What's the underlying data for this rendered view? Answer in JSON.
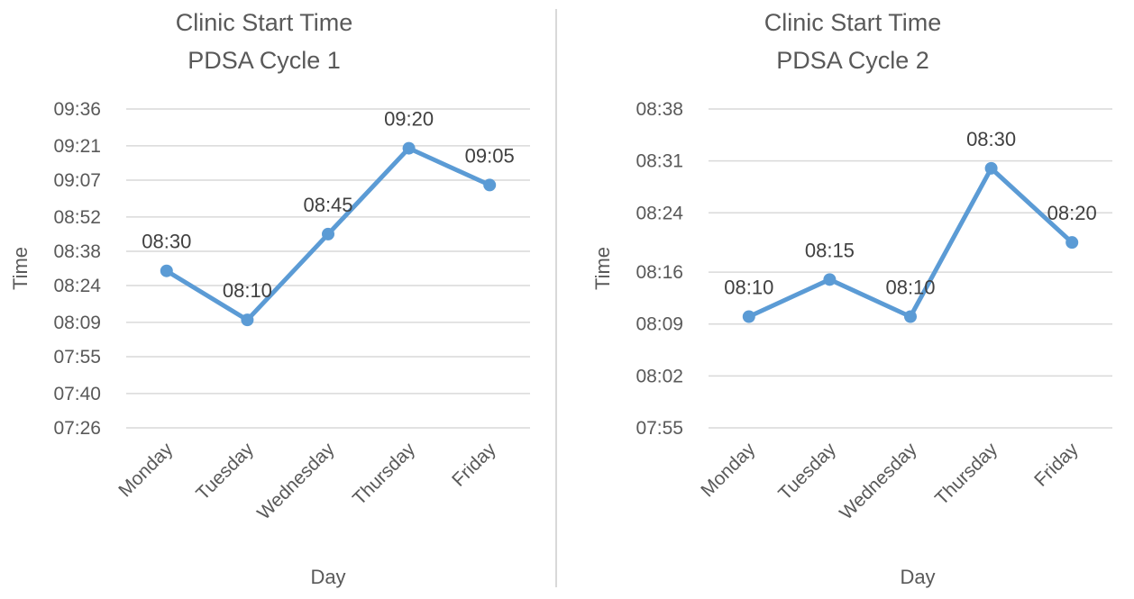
{
  "accent_color": "#5b9bd5",
  "chart_data": [
    {
      "type": "line",
      "title": "Clinic Start Time",
      "subtitle": "PDSA Cycle 1",
      "xlabel": "Day",
      "ylabel": "Time",
      "categories": [
        "Monday",
        "Tuesday",
        "Wednesday",
        "Thursday",
        "Friday"
      ],
      "yticks": [
        "09:36",
        "09:21",
        "09:07",
        "08:52",
        "08:38",
        "08:24",
        "08:09",
        "07:55",
        "07:40",
        "07:26"
      ],
      "ylim": [
        "07:26",
        "09:36"
      ],
      "values": [
        "08:30",
        "08:10",
        "08:45",
        "09:20",
        "09:05"
      ],
      "data_labels": [
        "08:30",
        "08:10",
        "08:45",
        "09:20",
        "09:05"
      ],
      "grid": true,
      "legend": "none",
      "color": "#5b9bd5"
    },
    {
      "type": "line",
      "title": "Clinic Start Time",
      "subtitle": "PDSA Cycle 2",
      "xlabel": "Day",
      "ylabel": "Time",
      "categories": [
        "Monday",
        "Tuesday",
        "Wednesday",
        "Thursday",
        "Friday"
      ],
      "yticks": [
        "08:38",
        "08:31",
        "08:24",
        "08:16",
        "08:09",
        "08:02",
        "07:55"
      ],
      "ylim": [
        "07:55",
        "08:38"
      ],
      "values": [
        "08:10",
        "08:15",
        "08:10",
        "08:30",
        "08:20"
      ],
      "data_labels": [
        "08:10",
        "08:15",
        "08:10",
        "08:30",
        "08:20"
      ],
      "grid": true,
      "legend": "none",
      "color": "#5b9bd5"
    }
  ]
}
